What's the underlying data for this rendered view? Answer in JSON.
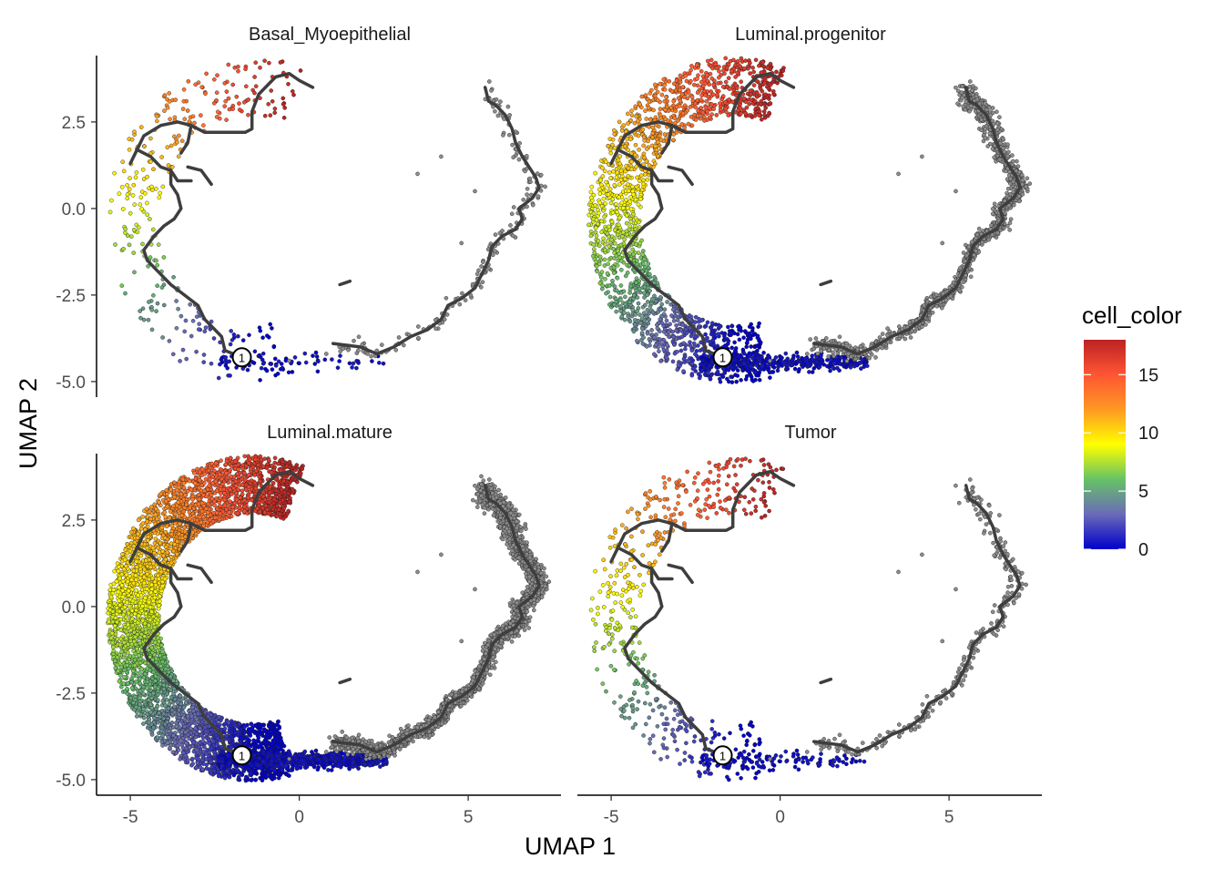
{
  "chart_data": {
    "type": "scatter",
    "xlabel": "UMAP 1",
    "ylabel": "UMAP 2",
    "xlim": [
      -6.0,
      7.8
    ],
    "ylim": [
      -5.45,
      4.55
    ],
    "x_ticks": [
      -5,
      0,
      5
    ],
    "y_ticks": [
      2.5,
      0.0,
      -2.5,
      -5.0
    ],
    "y_tick_labels": [
      "2.5",
      "0.0",
      "-2.5",
      "-5.0"
    ],
    "grid": false,
    "legend": {
      "title": "cell_color",
      "position": "right",
      "min": 0,
      "max": 18,
      "ticks": [
        0,
        5,
        10,
        15
      ],
      "colors": [
        "#0000cc",
        "#6a6ab8",
        "#66c266",
        "#ffff00",
        "#ff9922",
        "#ff5533",
        "#bb2222"
      ]
    },
    "trajectory_root": {
      "label": "1",
      "x": -1.7,
      "y": -4.3
    },
    "trajectory_path": [
      [
        0.4,
        3.5
      ],
      [
        0.0,
        3.7
      ],
      [
        -0.3,
        3.9
      ],
      [
        -0.7,
        3.8
      ],
      [
        -1.0,
        3.5
      ],
      [
        -1.2,
        3.3
      ],
      [
        -1.4,
        2.8
      ],
      [
        -1.4,
        2.3
      ],
      [
        -1.6,
        2.2
      ],
      [
        -2.3,
        2.2
      ],
      [
        -2.8,
        2.2
      ],
      [
        -3.2,
        2.4
      ],
      [
        -3.6,
        2.5
      ],
      [
        -4.1,
        2.4
      ],
      [
        -4.6,
        2.1
      ],
      [
        -4.8,
        1.7
      ],
      [
        -4.4,
        1.5
      ],
      [
        -4.1,
        1.2
      ],
      [
        -3.8,
        1.1
      ],
      [
        -3.8,
        0.7
      ],
      [
        -3.6,
        0.4
      ],
      [
        -3.5,
        0.0
      ],
      [
        -3.7,
        -0.3
      ],
      [
        -4.0,
        -0.5
      ],
      [
        -4.3,
        -0.8
      ],
      [
        -4.6,
        -1.2
      ],
      [
        -4.5,
        -1.5
      ],
      [
        -4.2,
        -1.8
      ],
      [
        -3.8,
        -2.2
      ],
      [
        -3.4,
        -2.5
      ],
      [
        -3.0,
        -2.8
      ],
      [
        -2.8,
        -3.2
      ],
      [
        -2.5,
        -3.5
      ],
      [
        -2.3,
        -3.7
      ],
      [
        -2.2,
        -4.1
      ],
      [
        -1.7,
        -4.3
      ]
    ],
    "trajectory_branches": [
      [
        [
          -3.2,
          2.4
        ],
        [
          -3.3,
          1.9
        ],
        [
          -3.5,
          1.6
        ]
      ],
      [
        [
          -4.8,
          1.7
        ],
        [
          -5.0,
          1.3
        ]
      ],
      [
        [
          -3.8,
          1.1
        ],
        [
          -3.6,
          0.8
        ],
        [
          -3.2,
          0.8
        ]
      ],
      [
        [
          -3.3,
          1.2
        ],
        [
          -2.9,
          1.1
        ],
        [
          -2.6,
          0.7
        ]
      ]
    ],
    "right_arm_path": [
      [
        1.0,
        -3.9
      ],
      [
        1.8,
        -4.0
      ],
      [
        2.3,
        -4.2
      ],
      [
        2.8,
        -4.0
      ],
      [
        3.3,
        -3.7
      ],
      [
        3.8,
        -3.5
      ],
      [
        4.2,
        -3.2
      ],
      [
        4.4,
        -2.8
      ],
      [
        4.8,
        -2.6
      ],
      [
        5.2,
        -2.3
      ],
      [
        5.4,
        -1.9
      ],
      [
        5.6,
        -1.5
      ],
      [
        5.7,
        -1.1
      ],
      [
        6.0,
        -0.8
      ],
      [
        6.4,
        -0.6
      ],
      [
        6.6,
        -0.3
      ],
      [
        6.5,
        0.0
      ],
      [
        6.9,
        0.3
      ],
      [
        7.1,
        0.6
      ],
      [
        7.0,
        0.9
      ],
      [
        6.8,
        1.2
      ],
      [
        6.6,
        1.5
      ],
      [
        6.4,
        1.9
      ],
      [
        6.3,
        2.3
      ],
      [
        6.1,
        2.7
      ],
      [
        5.8,
        3.0
      ],
      [
        5.6,
        3.1
      ],
      [
        5.5,
        3.5
      ]
    ],
    "panels": [
      {
        "title": "Basal_Myoepithelial",
        "density": 0.07
      },
      {
        "title": "Luminal.progenitor",
        "density": 0.45
      },
      {
        "title": "Luminal.mature",
        "density": 1.0
      },
      {
        "title": "Tumor",
        "density": 0.12
      }
    ]
  }
}
